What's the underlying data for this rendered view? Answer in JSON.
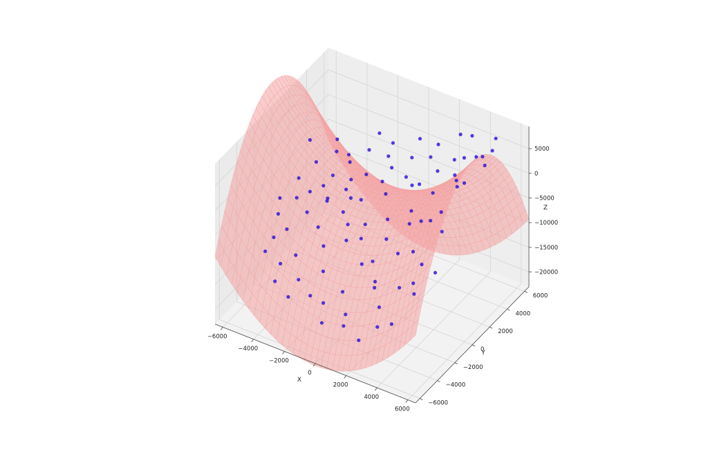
{
  "chart_data": {
    "type": "scatter",
    "subtype": "3d-scatter-with-fitted-surface",
    "title": "",
    "xlabel": "X",
    "ylabel": "Y",
    "zlabel": "Z",
    "xlim": [
      -6500,
      6500
    ],
    "ylim": [
      -6500,
      6500
    ],
    "zlim": [
      -23000,
      9500
    ],
    "x_ticks": [
      -6000,
      -4000,
      -2000,
      0,
      2000,
      4000,
      6000
    ],
    "y_ticks": [
      -6000,
      -4000,
      -2000,
      0,
      2000,
      4000,
      6000
    ],
    "z_ticks": [
      -20000,
      -15000,
      -10000,
      -5000,
      0,
      5000
    ],
    "x_tick_labels": [
      "−6000",
      "−4000",
      "−2000",
      "0",
      "2000",
      "4000",
      "6000"
    ],
    "y_tick_labels": [
      "−6000",
      "−4000",
      "−2000",
      "0",
      "2000",
      "4000",
      "6000"
    ],
    "z_tick_labels": [
      "−20000",
      "−15000",
      "−10000",
      "−5000",
      "0",
      "5000"
    ],
    "grid": true,
    "colors": {
      "points": "#1a00d6",
      "surface": "#f4a3a3",
      "pane": "#f2f2f2",
      "grid": "#d4d4d4"
    },
    "surface": {
      "model": "z = a*x^2 - b*y^2",
      "a": 0.000335,
      "b": 0.000555
    },
    "series": [
      {
        "points": [
          [
            -5800,
            -300,
            -7800
          ],
          [
            -5400,
            -1200,
            -8900
          ],
          [
            -5200,
            800,
            -5000
          ],
          [
            -4900,
            -2600,
            -10500
          ],
          [
            -4800,
            2100,
            -3600
          ],
          [
            -4500,
            -1800,
            -9800
          ],
          [
            -4300,
            500,
            -6100
          ],
          [
            -4100,
            3200,
            -2600
          ],
          [
            -3900,
            -3600,
            -12800
          ],
          [
            -3700,
            -900,
            -7000
          ],
          [
            -3500,
            1700,
            -4000
          ],
          [
            -3300,
            -2900,
            -11600
          ],
          [
            -3100,
            400,
            -5800
          ],
          [
            -2900,
            2600,
            -2200
          ],
          [
            -2700,
            -1400,
            -7900
          ],
          [
            -2500,
            -4000,
            -13600
          ],
          [
            -2300,
            1100,
            -4300
          ],
          [
            -2100,
            3400,
            -200
          ],
          [
            -1900,
            -2200,
            -9300
          ],
          [
            -1700,
            -300,
            -5600
          ],
          [
            -1500,
            2000,
            -1900
          ],
          [
            -1300,
            -3300,
            -11700
          ],
          [
            -1100,
            700,
            -4200
          ],
          [
            -900,
            4000,
            1600
          ],
          [
            -700,
            -1700,
            -7600
          ],
          [
            -500,
            -4700,
            -14600
          ],
          [
            -300,
            2800,
            -500
          ],
          [
            -100,
            -600,
            -5600
          ],
          [
            100,
            1400,
            -2800
          ],
          [
            300,
            -3900,
            -12800
          ],
          [
            500,
            3700,
            900
          ],
          [
            700,
            -2400,
            -9400
          ],
          [
            900,
            200,
            -4800
          ],
          [
            1100,
            -5200,
            -16400
          ],
          [
            1300,
            2300,
            -1200
          ],
          [
            1500,
            -1000,
            -5900
          ],
          [
            1700,
            4600,
            3400
          ],
          [
            1900,
            -3000,
            -10400
          ],
          [
            2100,
            800,
            -2700
          ],
          [
            2300,
            -5600,
            -17100
          ],
          [
            2500,
            3100,
            1700
          ],
          [
            2700,
            -1800,
            -5900
          ],
          [
            2900,
            -4300,
            -12000
          ],
          [
            3100,
            1500,
            900
          ],
          [
            3300,
            -200,
            -1500
          ],
          [
            3500,
            5300,
            6100
          ],
          [
            3700,
            -3400,
            -8700
          ],
          [
            3900,
            2600,
            3500
          ],
          [
            4100,
            -5000,
            -12700
          ],
          [
            4300,
            -900,
            1100
          ],
          [
            4500,
            4000,
            5400
          ],
          [
            4700,
            -2600,
            -4200
          ],
          [
            4900,
            1100,
            5100
          ],
          [
            5100,
            -4200,
            -6800
          ],
          [
            5300,
            3300,
            7700
          ],
          [
            5500,
            -1700,
            1800
          ],
          [
            5700,
            500,
            7900
          ],
          [
            5900,
            2500,
            8100
          ],
          [
            -5600,
            2800,
            -1400
          ],
          [
            -5000,
            -3400,
            -12000
          ],
          [
            -4400,
            3800,
            -1600
          ],
          [
            -3800,
            -4400,
            -14800
          ],
          [
            -3200,
            3000,
            -1800
          ],
          [
            -2600,
            -5000,
            -15400
          ],
          [
            -2000,
            4400,
            1500
          ],
          [
            -1400,
            -4600,
            -14400
          ],
          [
            -800,
            3300,
            300
          ],
          [
            -200,
            -5400,
            -17000
          ],
          [
            400,
            4800,
            2600
          ],
          [
            1000,
            -4800,
            -14900
          ],
          [
            1600,
            3900,
            2000
          ],
          [
            2200,
            -3600,
            -10200
          ],
          [
            2800,
            5200,
            5700
          ],
          [
            3400,
            -5400,
            -13400
          ],
          [
            4000,
            3500,
            5500
          ],
          [
            4600,
            -3400,
            -6700
          ],
          [
            5200,
            5000,
            8200
          ],
          [
            5800,
            -3000,
            -3800
          ],
          [
            -4600,
            -500,
            -5900
          ],
          [
            -3600,
            800,
            -4600
          ],
          [
            -2800,
            -200,
            -4900
          ],
          [
            -2200,
            1500,
            -2900
          ],
          [
            -1600,
            400,
            -3900
          ],
          [
            -1000,
            -1000,
            -6000
          ],
          [
            -400,
            1900,
            -1800
          ],
          [
            200,
            -1600,
            -6300
          ],
          [
            800,
            2500,
            -500
          ],
          [
            1400,
            -2400,
            -8000
          ],
          [
            2000,
            1900,
            600
          ],
          [
            2600,
            -300,
            -2700
          ],
          [
            3200,
            3800,
            3600
          ],
          [
            3800,
            -2000,
            -3800
          ],
          [
            4400,
            1900,
            4300
          ],
          [
            5000,
            -900,
            3700
          ],
          [
            5600,
            3900,
            8200
          ]
        ]
      }
    ]
  }
}
